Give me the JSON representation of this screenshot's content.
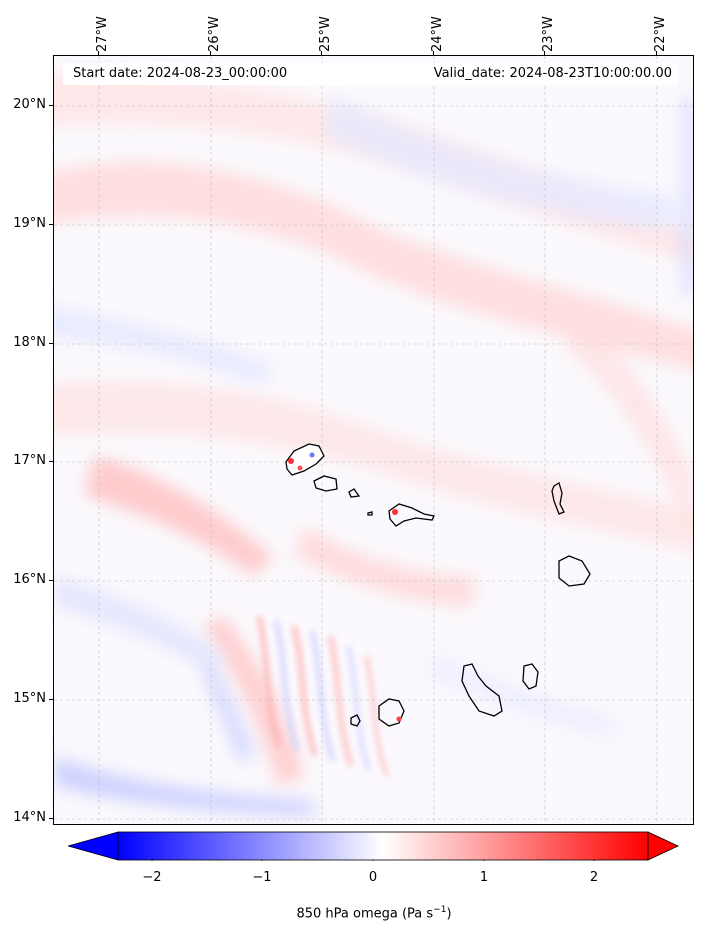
{
  "info": {
    "start_date": "Start date: 2024-08-23_00:00:00",
    "valid_date": "Valid_date: 2024-08-23T10:00:00.00"
  },
  "axes": {
    "lon_labels": [
      "27°W",
      "26°W",
      "25°W",
      "24°W",
      "23°W",
      "22°W"
    ],
    "lat_labels": [
      "20°N",
      "19°N",
      "18°N",
      "17°N",
      "16°N",
      "15°N",
      "14°N"
    ],
    "lon_range": [
      -27.4,
      -21.8
    ],
    "lat_range": [
      13.95,
      20.4
    ]
  },
  "colorbar": {
    "title": "850 hPa omega (Pa s",
    "title_sup": "−1",
    "title_end": ")",
    "ticks": [
      "−2",
      "−1",
      "0",
      "1",
      "2"
    ],
    "range": [
      -2.5,
      2.5
    ],
    "low_color": "#0000ff",
    "high_color": "#ff0000",
    "extend": "both"
  },
  "colors": {
    "neg": "#0000ff",
    "pos": "#ff0000",
    "coast": "#000000"
  }
}
